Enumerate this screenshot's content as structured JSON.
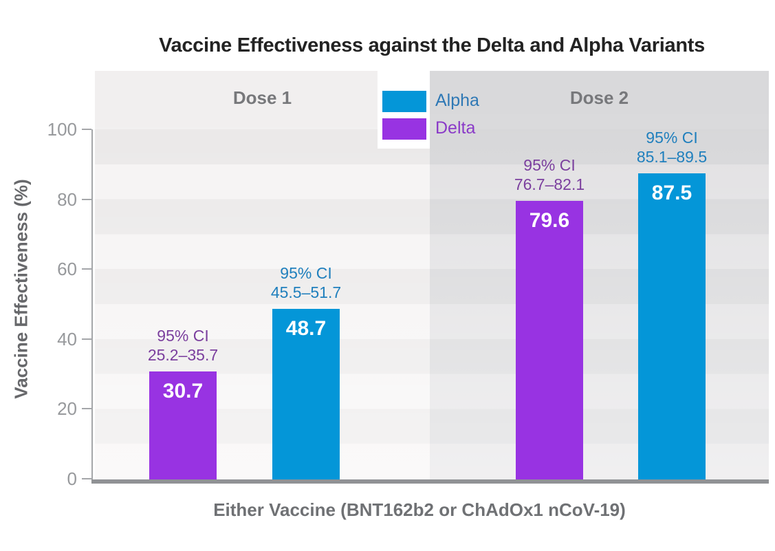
{
  "chart_data": {
    "type": "bar",
    "title": "Vaccine Effectiveness against the Delta and Alpha Variants",
    "xlabel": "Either Vaccine (BNT162b2 or ChAdOx1 nCoV-19)",
    "ylabel": "Vaccine Effectiveness (%)",
    "ylim": [
      0,
      100
    ],
    "yticks": [
      100,
      80,
      60,
      40,
      20,
      0
    ],
    "grid": "alternating 10-unit horizontal gray bands, Dose 2 panel shaded darker",
    "legend_position": "top center, between panel headers",
    "groups": [
      "Dose 1",
      "Dose 2"
    ],
    "legend": [
      {
        "label": "Alpha",
        "color": "#0496d8",
        "label_color": "#2e78b5"
      },
      {
        "label": "Delta",
        "color": "#9833e2",
        "label_color": "#8a3ac8"
      }
    ],
    "bars": [
      {
        "group": "Dose 1",
        "series": "Delta",
        "value": 30.7,
        "value_label": "30.7",
        "ci_label": "95% CI",
        "ci_low": 25.2,
        "ci_high": 35.7,
        "ci_range_text": "25.2–35.7",
        "bar_color": "#9833e2",
        "ci_text_color": "#7b3f9e"
      },
      {
        "group": "Dose 1",
        "series": "Alpha",
        "value": 48.7,
        "value_label": "48.7",
        "ci_label": "95% CI",
        "ci_low": 45.5,
        "ci_high": 51.7,
        "ci_range_text": "45.5–51.7",
        "bar_color": "#0496d8",
        "ci_text_color": "#1f7fbd"
      },
      {
        "group": "Dose 2",
        "series": "Delta",
        "value": 79.6,
        "value_label": "79.6",
        "ci_label": "95% CI",
        "ci_low": 76.7,
        "ci_high": 82.1,
        "ci_range_text": "76.7–82.1",
        "bar_color": "#9833e2",
        "ci_text_color": "#7b3f9e"
      },
      {
        "group": "Dose 2",
        "series": "Alpha",
        "value": 87.5,
        "value_label": "87.5",
        "ci_label": "95% CI",
        "ci_low": 85.1,
        "ci_high": 89.5,
        "ci_range_text": "85.1–89.5",
        "bar_color": "#0496d8",
        "ci_text_color": "#1f7fbd"
      }
    ]
  }
}
